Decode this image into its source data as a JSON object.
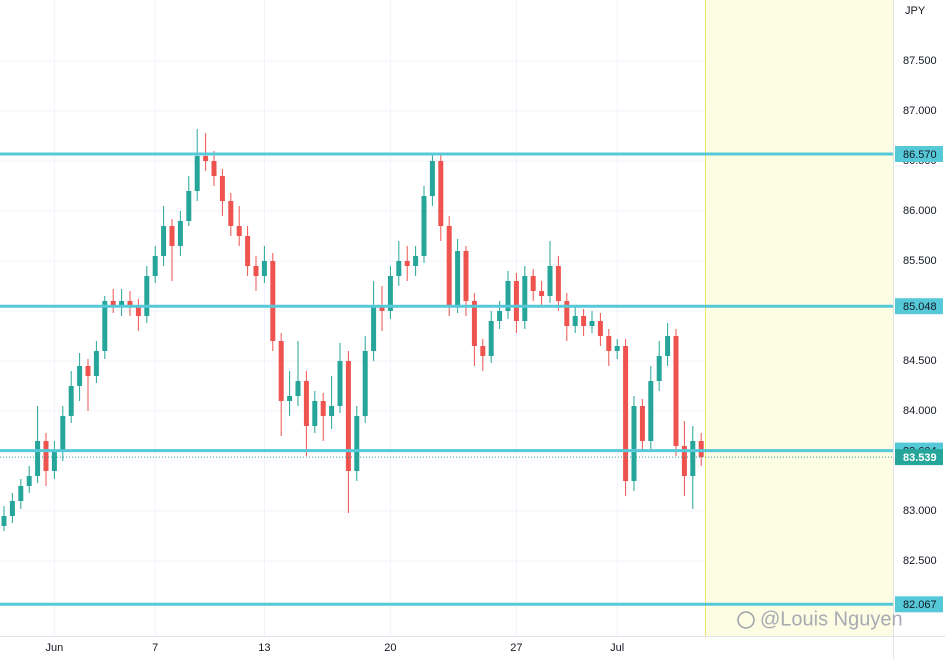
{
  "chart_data": {
    "type": "candlestick",
    "y_axis_label": "JPY",
    "watermark": "@Louis Nguyen",
    "up_color": "#26a69a",
    "down_color": "#ef5350",
    "level_color": "#56c9d9",
    "ylim": [
      81.75,
      88.11
    ],
    "yticks": [
      {
        "value": 82.5,
        "label": "82.500"
      },
      {
        "value": 83,
        "label": "83.000"
      },
      {
        "value": 83.5,
        "label": "83.500"
      },
      {
        "value": 84,
        "label": "84.000"
      },
      {
        "value": 84.5,
        "label": "84.500"
      },
      {
        "value": 85,
        "label": "85.000"
      },
      {
        "value": 85.5,
        "label": "85.500"
      },
      {
        "value": 86,
        "label": "86.000"
      },
      {
        "value": 86.5,
        "label": "86.500"
      },
      {
        "value": 87,
        "label": "87.000"
      },
      {
        "value": 87.5,
        "label": "87.500"
      }
    ],
    "xticks": [
      {
        "index": 6,
        "label": "Jun"
      },
      {
        "index": 18,
        "label": "7"
      },
      {
        "index": 31,
        "label": "13"
      },
      {
        "index": 46,
        "label": "20"
      },
      {
        "index": 61,
        "label": "27"
      },
      {
        "index": 73,
        "label": "Jul"
      }
    ],
    "levels": [
      {
        "value": 86.57,
        "label": "86.570"
      },
      85.048,
      83.604,
      82.067
    ],
    "ohlc": [
      [
        82.85,
        83.05,
        82.8,
        82.95
      ],
      [
        82.95,
        83.18,
        82.88,
        83.1
      ],
      [
        83.1,
        83.32,
        83.02,
        83.25
      ],
      [
        83.25,
        83.45,
        83.18,
        83.35
      ],
      [
        83.35,
        84.05,
        83.28,
        83.7
      ],
      [
        83.7,
        83.78,
        83.25,
        83.4
      ],
      [
        83.4,
        83.7,
        83.32,
        83.6
      ],
      [
        83.6,
        84.05,
        83.5,
        83.95
      ],
      [
        83.95,
        84.4,
        83.88,
        84.25
      ],
      [
        84.25,
        84.58,
        84.1,
        84.45
      ],
      [
        84.45,
        84.52,
        84.0,
        84.35
      ],
      [
        84.35,
        84.7,
        84.28,
        84.6
      ],
      [
        84.6,
        85.15,
        84.52,
        85.1
      ],
      [
        85.1,
        85.22,
        84.98,
        85.05
      ],
      [
        85.05,
        85.22,
        84.95,
        85.1
      ],
      [
        85.1,
        85.2,
        84.95,
        85.05
      ],
      [
        85.05,
        85.12,
        84.8,
        84.95
      ],
      [
        84.95,
        85.45,
        84.88,
        85.35
      ],
      [
        85.35,
        85.65,
        85.28,
        85.55
      ],
      [
        85.55,
        86.05,
        85.45,
        85.85
      ],
      [
        85.85,
        85.92,
        85.3,
        85.65
      ],
      [
        85.65,
        86.0,
        85.55,
        85.9
      ],
      [
        85.9,
        86.35,
        85.85,
        86.2
      ],
      [
        86.2,
        86.82,
        86.1,
        86.55
      ],
      [
        86.55,
        86.78,
        86.4,
        86.5
      ],
      [
        86.5,
        86.6,
        86.25,
        86.35
      ],
      [
        86.35,
        86.42,
        85.95,
        86.1
      ],
      [
        86.1,
        86.18,
        85.75,
        85.85
      ],
      [
        85.85,
        86.05,
        85.65,
        85.75
      ],
      [
        85.75,
        85.85,
        85.35,
        85.45
      ],
      [
        85.45,
        85.55,
        85.2,
        85.35
      ],
      [
        85.35,
        85.65,
        85.28,
        85.5
      ],
      [
        85.5,
        85.58,
        84.6,
        84.7
      ],
      [
        84.7,
        84.78,
        83.75,
        84.1
      ],
      [
        84.1,
        84.4,
        83.95,
        84.15
      ],
      [
        84.15,
        84.7,
        84.05,
        84.3
      ],
      [
        84.3,
        84.4,
        83.55,
        83.85
      ],
      [
        83.85,
        84.2,
        83.78,
        84.1
      ],
      [
        84.1,
        84.18,
        83.7,
        83.95
      ],
      [
        83.95,
        84.35,
        83.82,
        84.05
      ],
      [
        84.05,
        84.68,
        83.98,
        84.5
      ],
      [
        84.5,
        84.6,
        82.98,
        83.4
      ],
      [
        83.4,
        84.05,
        83.3,
        83.95
      ],
      [
        83.95,
        84.75,
        83.88,
        84.6
      ],
      [
        84.6,
        85.3,
        84.5,
        85.05
      ],
      [
        85.05,
        85.25,
        84.8,
        85.0
      ],
      [
        85.0,
        85.45,
        84.92,
        85.35
      ],
      [
        85.35,
        85.7,
        85.25,
        85.5
      ],
      [
        85.5,
        85.65,
        85.3,
        85.45
      ],
      [
        85.45,
        85.65,
        85.35,
        85.55
      ],
      [
        85.55,
        86.25,
        85.48,
        86.15
      ],
      [
        86.15,
        86.58,
        86.05,
        86.5
      ],
      [
        86.5,
        86.58,
        85.7,
        85.85
      ],
      [
        85.85,
        85.95,
        84.95,
        85.05
      ],
      [
        85.05,
        85.72,
        84.98,
        85.6
      ],
      [
        85.6,
        85.65,
        84.95,
        85.1
      ],
      [
        85.1,
        85.18,
        84.45,
        84.65
      ],
      [
        84.65,
        84.72,
        84.4,
        84.55
      ],
      [
        84.55,
        85.0,
        84.48,
        84.9
      ],
      [
        84.9,
        85.1,
        84.82,
        85.0
      ],
      [
        85.0,
        85.4,
        84.92,
        85.3
      ],
      [
        85.3,
        85.38,
        84.78,
        84.9
      ],
      [
        84.9,
        85.45,
        84.82,
        85.35
      ],
      [
        85.35,
        85.42,
        85.1,
        85.2
      ],
      [
        85.2,
        85.3,
        85.05,
        85.15
      ],
      [
        85.15,
        85.7,
        85.08,
        85.45
      ],
      [
        85.45,
        85.55,
        85.0,
        85.1
      ],
      [
        85.1,
        85.18,
        84.7,
        84.85
      ],
      [
        84.85,
        85.05,
        84.78,
        84.95
      ],
      [
        84.95,
        85.02,
        84.75,
        84.85
      ],
      [
        84.85,
        85.0,
        84.78,
        84.9
      ],
      [
        84.9,
        84.98,
        84.65,
        84.75
      ],
      [
        84.75,
        84.82,
        84.45,
        84.6
      ],
      [
        84.6,
        84.72,
        84.52,
        84.65
      ],
      [
        84.65,
        84.72,
        83.15,
        83.3
      ],
      [
        83.3,
        84.15,
        83.2,
        84.05
      ],
      [
        84.05,
        84.12,
        83.6,
        83.7
      ],
      [
        83.7,
        84.45,
        83.62,
        84.3
      ],
      [
        84.3,
        84.7,
        84.2,
        84.55
      ],
      [
        84.55,
        84.88,
        84.45,
        84.75
      ],
      [
        84.75,
        84.82,
        83.55,
        83.65
      ],
      [
        83.65,
        83.9,
        83.15,
        83.35
      ],
      [
        83.35,
        83.85,
        83.02,
        83.7
      ],
      [
        83.7,
        83.78,
        83.45,
        83.539
      ]
    ]
  }
}
